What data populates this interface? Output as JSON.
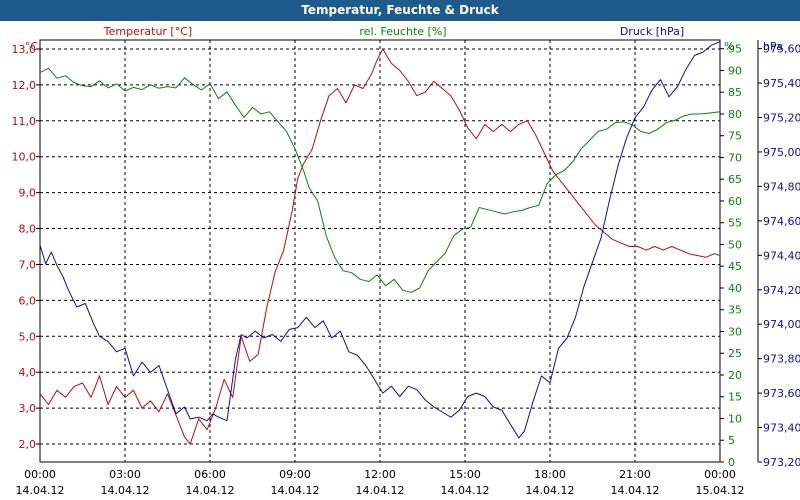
{
  "window": {
    "title": "Temperatur, Feuchte & Druck"
  },
  "colors": {
    "temperature": "#b01010",
    "humidity": "#108010",
    "pressure": "#10109c",
    "title_bar": "#1f5a8c"
  },
  "chart_data": {
    "type": "line",
    "title": "Temperatur, Feuchte & Druck",
    "series_labels": {
      "temperature": "Temperatur [°C]",
      "humidity": "rel. Feuchte [%]",
      "pressure": "Druck [hPa]"
    },
    "unit_labels": {
      "temperature": "°C",
      "humidity": "%",
      "pressure": "hPa"
    },
    "x_range_hours": [
      0,
      24
    ],
    "x_ticks": [
      {
        "h": 0,
        "time": "00:00",
        "date": "14.04.12"
      },
      {
        "h": 3,
        "time": "03:00",
        "date": "14.04.12"
      },
      {
        "h": 6,
        "time": "06:00",
        "date": "14.04.12"
      },
      {
        "h": 9,
        "time": "09:00",
        "date": "14.04.12"
      },
      {
        "h": 12,
        "time": "12:00",
        "date": "14.04.12"
      },
      {
        "h": 15,
        "time": "15:00",
        "date": "14.04.12"
      },
      {
        "h": 18,
        "time": "18:00",
        "date": "14.04.12"
      },
      {
        "h": 21,
        "time": "21:00",
        "date": "14.04.12"
      },
      {
        "h": 24,
        "time": "00:00",
        "date": "15.04.12"
      }
    ],
    "temperature_axis": {
      "min": 1.5,
      "max": 13.25,
      "ticks": [
        "2,0",
        "3,0",
        "4,0",
        "5,0",
        "6,0",
        "7,0",
        "8,0",
        "9,0",
        "10,0",
        "11,0",
        "12,0",
        "13,0"
      ]
    },
    "humidity_axis": {
      "min": 0,
      "max": 97,
      "ticks": [
        "0",
        "5",
        "10",
        "15",
        "20",
        "25",
        "30",
        "35",
        "40",
        "45",
        "50",
        "55",
        "60",
        "65",
        "70",
        "75",
        "80",
        "85",
        "90",
        "95"
      ]
    },
    "pressure_axis": {
      "min": 973.2,
      "max": 975.65,
      "ticks": [
        "973,20",
        "973,40",
        "973,60",
        "973,80",
        "974,00",
        "974,20",
        "974,40",
        "974,60",
        "974,80",
        "975,00",
        "975,20",
        "975,40",
        "975,60"
      ]
    },
    "series": [
      {
        "name": "Temperatur [°C]",
        "key": "temperature",
        "points": [
          [
            0.0,
            3.4
          ],
          [
            0.3,
            3.1
          ],
          [
            0.6,
            3.5
          ],
          [
            0.9,
            3.3
          ],
          [
            1.2,
            3.6
          ],
          [
            1.5,
            3.7
          ],
          [
            1.8,
            3.3
          ],
          [
            2.1,
            3.9
          ],
          [
            2.4,
            3.1
          ],
          [
            2.7,
            3.6
          ],
          [
            3.0,
            3.3
          ],
          [
            3.3,
            3.5
          ],
          [
            3.6,
            3.0
          ],
          [
            3.9,
            3.2
          ],
          [
            4.2,
            2.9
          ],
          [
            4.5,
            3.4
          ],
          [
            4.8,
            2.8
          ],
          [
            5.1,
            2.2
          ],
          [
            5.3,
            2.0
          ],
          [
            5.6,
            2.7
          ],
          [
            5.9,
            2.4
          ],
          [
            6.2,
            3.0
          ],
          [
            6.5,
            3.8
          ],
          [
            6.8,
            3.3
          ],
          [
            7.1,
            5.0
          ],
          [
            7.4,
            4.3
          ],
          [
            7.7,
            4.5
          ],
          [
            8.0,
            5.8
          ],
          [
            8.3,
            6.8
          ],
          [
            8.6,
            7.4
          ],
          [
            8.9,
            8.5
          ],
          [
            9.1,
            9.4
          ],
          [
            9.3,
            9.8
          ],
          [
            9.6,
            10.2
          ],
          [
            9.9,
            11.0
          ],
          [
            10.2,
            11.7
          ],
          [
            10.5,
            11.9
          ],
          [
            10.8,
            11.5
          ],
          [
            11.1,
            12.0
          ],
          [
            11.4,
            11.9
          ],
          [
            11.7,
            12.3
          ],
          [
            11.9,
            12.7
          ],
          [
            12.1,
            13.0
          ],
          [
            12.4,
            12.6
          ],
          [
            12.7,
            12.4
          ],
          [
            13.0,
            12.1
          ],
          [
            13.3,
            11.7
          ],
          [
            13.6,
            11.8
          ],
          [
            13.9,
            12.1
          ],
          [
            14.2,
            11.9
          ],
          [
            14.5,
            11.7
          ],
          [
            14.8,
            11.3
          ],
          [
            15.1,
            10.8
          ],
          [
            15.4,
            10.5
          ],
          [
            15.7,
            10.9
          ],
          [
            16.0,
            10.7
          ],
          [
            16.3,
            10.9
          ],
          [
            16.6,
            10.7
          ],
          [
            16.9,
            10.9
          ],
          [
            17.2,
            11.0
          ],
          [
            17.5,
            10.6
          ],
          [
            17.8,
            10.1
          ],
          [
            18.1,
            9.6
          ],
          [
            18.4,
            9.3
          ],
          [
            18.7,
            9.0
          ],
          [
            19.0,
            8.7
          ],
          [
            19.3,
            8.4
          ],
          [
            19.6,
            8.1
          ],
          [
            19.9,
            7.9
          ],
          [
            20.2,
            7.7
          ],
          [
            20.5,
            7.6
          ],
          [
            20.8,
            7.5
          ],
          [
            21.1,
            7.5
          ],
          [
            21.4,
            7.4
          ],
          [
            21.7,
            7.5
          ],
          [
            22.0,
            7.4
          ],
          [
            22.3,
            7.5
          ],
          [
            22.6,
            7.4
          ],
          [
            22.9,
            7.3
          ],
          [
            23.2,
            7.25
          ],
          [
            23.5,
            7.2
          ],
          [
            23.8,
            7.3
          ],
          [
            24.0,
            7.25
          ]
        ]
      },
      {
        "name": "rel. Feuchte [%]",
        "key": "humidity",
        "points": [
          [
            0.0,
            89.5
          ],
          [
            0.3,
            90.5
          ],
          [
            0.6,
            88.2
          ],
          [
            0.9,
            88.8
          ],
          [
            1.2,
            87.2
          ],
          [
            1.5,
            86.5
          ],
          [
            1.8,
            86.3
          ],
          [
            2.1,
            87.6
          ],
          [
            2.4,
            86.0
          ],
          [
            2.7,
            86.9
          ],
          [
            3.0,
            85.3
          ],
          [
            3.3,
            86.1
          ],
          [
            3.6,
            85.6
          ],
          [
            3.9,
            86.7
          ],
          [
            4.2,
            85.9
          ],
          [
            4.5,
            86.3
          ],
          [
            4.8,
            86.0
          ],
          [
            5.1,
            88.3
          ],
          [
            5.4,
            86.8
          ],
          [
            5.7,
            85.5
          ],
          [
            6.0,
            87.0
          ],
          [
            6.3,
            83.5
          ],
          [
            6.6,
            85.1
          ],
          [
            6.9,
            82.0
          ],
          [
            7.2,
            79.2
          ],
          [
            7.5,
            81.5
          ],
          [
            7.8,
            80.0
          ],
          [
            8.1,
            80.5
          ],
          [
            8.4,
            78.2
          ],
          [
            8.7,
            76.0
          ],
          [
            9.0,
            72.0
          ],
          [
            9.3,
            67.0
          ],
          [
            9.5,
            63.0
          ],
          [
            9.8,
            60.0
          ],
          [
            10.1,
            52.0
          ],
          [
            10.4,
            47.0
          ],
          [
            10.7,
            44.0
          ],
          [
            11.0,
            43.5
          ],
          [
            11.3,
            42.0
          ],
          [
            11.6,
            41.5
          ],
          [
            11.9,
            43.0
          ],
          [
            12.2,
            40.5
          ],
          [
            12.5,
            42.0
          ],
          [
            12.8,
            39.5
          ],
          [
            13.1,
            39.0
          ],
          [
            13.4,
            40.0
          ],
          [
            13.7,
            44.0
          ],
          [
            14.0,
            46.0
          ],
          [
            14.3,
            48.0
          ],
          [
            14.6,
            52.0
          ],
          [
            14.9,
            53.5
          ],
          [
            15.2,
            54.0
          ],
          [
            15.5,
            58.5
          ],
          [
            15.8,
            58.0
          ],
          [
            16.1,
            57.5
          ],
          [
            16.4,
            57.0
          ],
          [
            16.7,
            57.5
          ],
          [
            17.0,
            57.8
          ],
          [
            17.3,
            58.5
          ],
          [
            17.6,
            59.0
          ],
          [
            17.9,
            64.0
          ],
          [
            18.2,
            66.0
          ],
          [
            18.5,
            67.0
          ],
          [
            18.8,
            69.0
          ],
          [
            19.1,
            72.0
          ],
          [
            19.4,
            74.0
          ],
          [
            19.7,
            76.0
          ],
          [
            20.0,
            76.5
          ],
          [
            20.3,
            78.0
          ],
          [
            20.6,
            78.2
          ],
          [
            20.9,
            77.5
          ],
          [
            21.2,
            76.0
          ],
          [
            21.5,
            75.5
          ],
          [
            21.8,
            76.5
          ],
          [
            22.1,
            78.0
          ],
          [
            22.4,
            78.5
          ],
          [
            22.7,
            79.5
          ],
          [
            23.0,
            80.0
          ],
          [
            23.3,
            80.0
          ],
          [
            23.6,
            80.2
          ],
          [
            24.0,
            80.5
          ]
        ]
      },
      {
        "name": "Druck [hPa]",
        "key": "pressure",
        "points": [
          [
            0.0,
            974.46
          ],
          [
            0.2,
            974.35
          ],
          [
            0.4,
            974.42
          ],
          [
            0.6,
            974.34
          ],
          [
            0.8,
            974.28
          ],
          [
            1.0,
            974.2
          ],
          [
            1.3,
            974.1
          ],
          [
            1.6,
            974.12
          ],
          [
            1.9,
            974.0
          ],
          [
            2.1,
            973.93
          ],
          [
            2.4,
            973.9
          ],
          [
            2.7,
            973.84
          ],
          [
            3.0,
            973.86
          ],
          [
            3.3,
            973.7
          ],
          [
            3.6,
            973.78
          ],
          [
            3.9,
            973.72
          ],
          [
            4.2,
            973.76
          ],
          [
            4.5,
            973.62
          ],
          [
            4.8,
            973.48
          ],
          [
            5.1,
            973.52
          ],
          [
            5.3,
            973.45
          ],
          [
            5.6,
            973.46
          ],
          [
            5.9,
            973.44
          ],
          [
            6.1,
            973.48
          ],
          [
            6.3,
            973.46
          ],
          [
            6.6,
            973.44
          ],
          [
            6.9,
            973.8
          ],
          [
            7.1,
            973.94
          ],
          [
            7.3,
            973.92
          ],
          [
            7.6,
            973.96
          ],
          [
            7.9,
            973.92
          ],
          [
            8.2,
            973.94
          ],
          [
            8.5,
            973.9
          ],
          [
            8.8,
            973.97
          ],
          [
            9.1,
            973.98
          ],
          [
            9.4,
            974.04
          ],
          [
            9.7,
            973.98
          ],
          [
            10.0,
            974.02
          ],
          [
            10.3,
            973.92
          ],
          [
            10.6,
            973.96
          ],
          [
            10.9,
            973.84
          ],
          [
            11.2,
            973.82
          ],
          [
            11.5,
            973.76
          ],
          [
            11.8,
            973.68
          ],
          [
            12.1,
            973.6
          ],
          [
            12.4,
            973.64
          ],
          [
            12.7,
            973.58
          ],
          [
            13.0,
            973.64
          ],
          [
            13.3,
            973.62
          ],
          [
            13.6,
            973.56
          ],
          [
            13.9,
            973.52
          ],
          [
            14.2,
            973.49
          ],
          [
            14.5,
            973.46
          ],
          [
            14.8,
            973.5
          ],
          [
            15.1,
            973.58
          ],
          [
            15.4,
            973.6
          ],
          [
            15.7,
            973.58
          ],
          [
            16.0,
            973.52
          ],
          [
            16.3,
            973.5
          ],
          [
            16.6,
            973.42
          ],
          [
            16.9,
            973.34
          ],
          [
            17.1,
            973.38
          ],
          [
            17.4,
            973.55
          ],
          [
            17.7,
            973.7
          ],
          [
            18.0,
            973.66
          ],
          [
            18.3,
            973.86
          ],
          [
            18.6,
            973.92
          ],
          [
            18.9,
            974.04
          ],
          [
            19.2,
            974.22
          ],
          [
            19.5,
            974.36
          ],
          [
            19.8,
            974.5
          ],
          [
            20.1,
            974.72
          ],
          [
            20.4,
            974.92
          ],
          [
            20.7,
            975.08
          ],
          [
            21.0,
            975.2
          ],
          [
            21.3,
            975.26
          ],
          [
            21.6,
            975.36
          ],
          [
            21.9,
            975.42
          ],
          [
            22.2,
            975.32
          ],
          [
            22.5,
            975.38
          ],
          [
            22.8,
            975.48
          ],
          [
            23.1,
            975.56
          ],
          [
            23.4,
            975.58
          ],
          [
            23.7,
            975.62
          ],
          [
            24.0,
            975.64
          ]
        ]
      }
    ]
  }
}
